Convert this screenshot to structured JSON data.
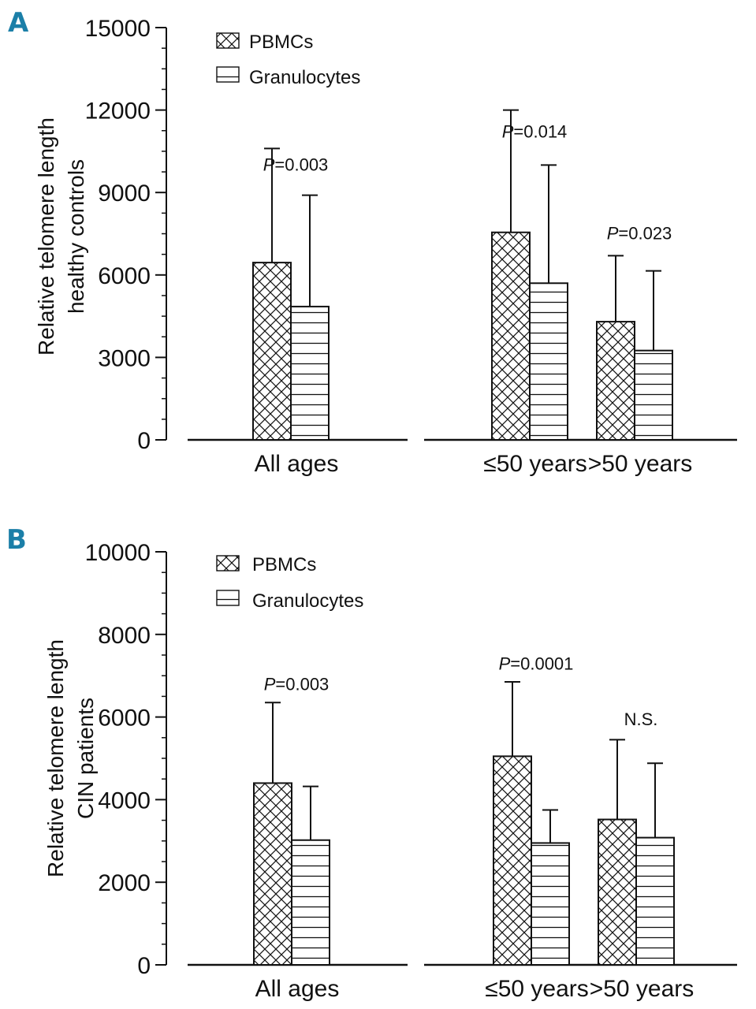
{
  "colors": {
    "panel_letter": "#1b7fa8",
    "ink": "#111111",
    "bar_fill": "#ffffff"
  },
  "chart_data": [
    {
      "panel": "A",
      "type": "bar",
      "ylabel_line1": "Relative telomere length",
      "ylabel_line2": "healthy controls",
      "ylim": [
        0,
        15000
      ],
      "yticks": [
        "0",
        "3000",
        "6000",
        "9000",
        "12000",
        "15000"
      ],
      "categories": [
        "All ages",
        "≤50 years",
        ">50 years"
      ],
      "legend": [
        "PBMCs",
        "Granulocytes"
      ],
      "series": [
        {
          "name": "PBMCs",
          "pattern": "crosshatch",
          "values": [
            6450,
            7550,
            4300
          ],
          "errors": [
            4150,
            4450,
            2400
          ]
        },
        {
          "name": "Granulocytes",
          "pattern": "horizontal",
          "values": [
            4850,
            5700,
            3250
          ],
          "errors": [
            4050,
            4300,
            2900
          ]
        }
      ],
      "annotations": [
        {
          "category": 0,
          "italic": "P",
          "text": "=0.003",
          "at": 9800
        },
        {
          "category": 1,
          "italic": "P",
          "text": "=0.014",
          "at": 11000
        },
        {
          "category": 2,
          "italic": "P",
          "text": "=0.023",
          "at": 7300
        }
      ]
    },
    {
      "panel": "B",
      "type": "bar",
      "ylabel_line1": "Relative telomere length",
      "ylabel_line2": "CIN patients",
      "ylim": [
        0,
        10000
      ],
      "yticks": [
        "0",
        "2000",
        "4000",
        "6000",
        "8000",
        "10000"
      ],
      "categories": [
        "All ages",
        "≤50 years",
        ">50 years"
      ],
      "legend": [
        "PBMCs",
        "Granulocytes"
      ],
      "series": [
        {
          "name": "PBMCs",
          "pattern": "crosshatch",
          "values": [
            4400,
            5050,
            3520
          ],
          "errors": [
            1950,
            1800,
            1930
          ]
        },
        {
          "name": "Granulocytes",
          "pattern": "horizontal",
          "values": [
            3020,
            2950,
            3080
          ],
          "errors": [
            1300,
            800,
            1800
          ]
        }
      ],
      "annotations": [
        {
          "category": 0,
          "italic": "P",
          "text": "=0.003",
          "at": 6650
        },
        {
          "category": 1,
          "italic": "P",
          "text": "=0.0001",
          "at": 7150
        },
        {
          "category": 2,
          "italic": "",
          "text": "N.S.",
          "at": 5800
        }
      ]
    }
  ]
}
